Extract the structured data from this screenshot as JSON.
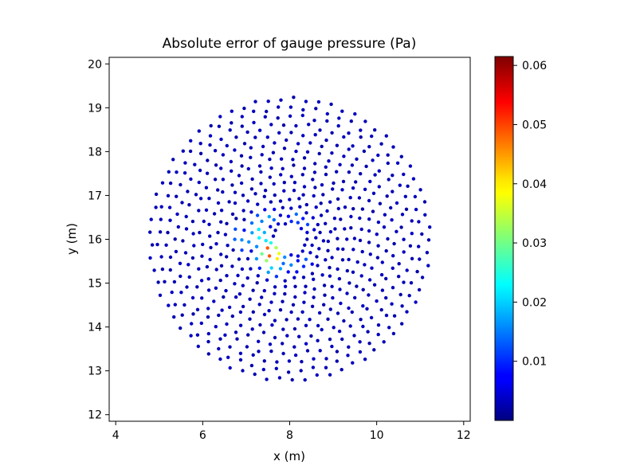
{
  "chart_data": {
    "type": "scatter",
    "title": "Absolute error of gauge pressure (Pa)",
    "xlabel": "x (m)",
    "ylabel": "y (m)",
    "xlim": [
      3.85,
      12.15
    ],
    "ylim": [
      11.85,
      20.15
    ],
    "xticks": [
      4,
      6,
      8,
      10,
      12
    ],
    "yticks": [
      12,
      13,
      14,
      15,
      16,
      17,
      18,
      19,
      20
    ],
    "grid": false,
    "colormap": "jet",
    "colorbar": {
      "min": 0.0,
      "max": 0.0615,
      "ticks": [
        0.01,
        0.02,
        0.03,
        0.04,
        0.05,
        0.06
      ],
      "tick_labels": [
        "0.01",
        "0.02",
        "0.03",
        "0.04",
        "0.05",
        "0.06"
      ]
    },
    "point_set": {
      "center": [
        8.0,
        16.0
      ],
      "inner_radius": 0.4,
      "outer_radius": 3.2,
      "rings": 16,
      "base_error": 0.004
    },
    "hot_spots": [
      {
        "x": 7.55,
        "y": 15.72,
        "value": 0.061
      },
      {
        "x": 7.62,
        "y": 15.66,
        "value": 0.056
      },
      {
        "x": 7.5,
        "y": 15.64,
        "value": 0.047
      },
      {
        "x": 7.68,
        "y": 15.58,
        "value": 0.041
      },
      {
        "x": 7.46,
        "y": 15.78,
        "value": 0.036
      },
      {
        "x": 7.4,
        "y": 15.55,
        "value": 0.03
      },
      {
        "x": 7.35,
        "y": 15.95,
        "value": 0.028
      },
      {
        "x": 7.3,
        "y": 16.15,
        "value": 0.025
      },
      {
        "x": 7.1,
        "y": 16.05,
        "value": 0.022
      },
      {
        "x": 6.95,
        "y": 15.9,
        "value": 0.02
      },
      {
        "x": 6.8,
        "y": 16.1,
        "value": 0.019
      },
      {
        "x": 7.25,
        "y": 16.4,
        "value": 0.02
      },
      {
        "x": 7.55,
        "y": 16.5,
        "value": 0.018
      },
      {
        "x": 7.6,
        "y": 15.3,
        "value": 0.022
      },
      {
        "x": 7.8,
        "y": 15.35,
        "value": 0.018
      },
      {
        "x": 8.05,
        "y": 15.42,
        "value": 0.016
      },
      {
        "x": 8.35,
        "y": 15.5,
        "value": 0.014
      },
      {
        "x": 8.15,
        "y": 16.5,
        "value": 0.016
      },
      {
        "x": 8.4,
        "y": 16.35,
        "value": 0.012
      }
    ]
  }
}
